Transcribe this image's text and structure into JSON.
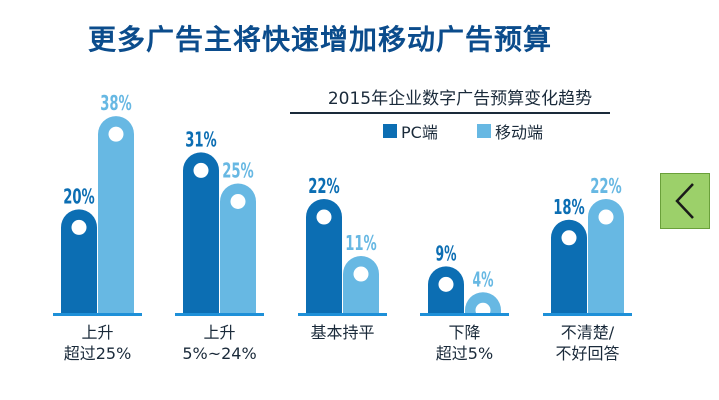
{
  "title": "更多广告主将快速增加移动广告预算",
  "chart_data": {
    "type": "bar",
    "title": "2015年企业数字广告预算变化趋势",
    "categories": [
      [
        "上升",
        "超过25%"
      ],
      [
        "上升",
        "5%~24%"
      ],
      [
        "基本持平"
      ],
      [
        "下降",
        "超过5%"
      ],
      [
        "不清楚/",
        "不好回答"
      ]
    ],
    "series": [
      {
        "name": "PC端",
        "color": "#0c6eb3",
        "values": [
          20,
          31,
          22,
          9,
          18
        ],
        "labels": [
          "20%",
          "31%",
          "22%",
          "9%",
          "18%"
        ]
      },
      {
        "name": "移动端",
        "color": "#67b8e3",
        "values": [
          38,
          25,
          11,
          4,
          22
        ],
        "labels": [
          "38%",
          "25%",
          "11%",
          "4%",
          "22%"
        ]
      }
    ],
    "unit": "%",
    "ylim": [
      0,
      40
    ]
  },
  "nav": {
    "back_icon": "chevron-left-icon",
    "back_color": "#9cd06a"
  }
}
